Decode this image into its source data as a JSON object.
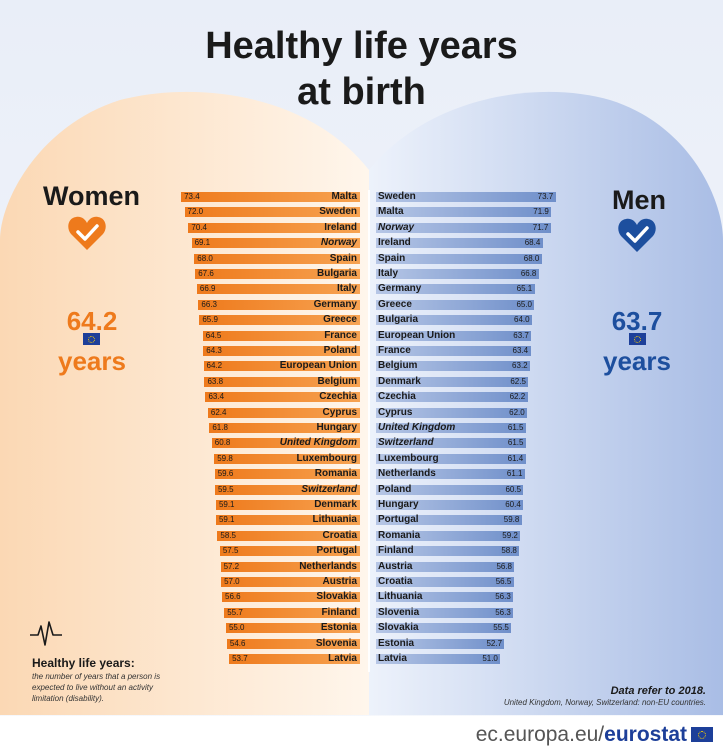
{
  "title_line1": "Healthy life years",
  "title_line2": "at birth",
  "women": {
    "label": "Women",
    "value": "64.2",
    "unit": "years",
    "color": "#ee7a1c"
  },
  "men": {
    "label": "Men",
    "value": "63.7",
    "unit": "years",
    "color": "#1d4f9e"
  },
  "note": {
    "title": "Healthy life years:",
    "text": "the number of years that a person is expected to live without an activity limitation (disability)."
  },
  "data_refer": "Data refer to 2018.",
  "footnote": "United Kingdom, Norway, Switzerland: non-EU countries.",
  "footer": {
    "url_prefix": "ec.europa.eu/",
    "url_brand": "eurostat"
  },
  "chart_data": [
    {
      "type": "bar",
      "series_name": "Women",
      "x_max": 80,
      "categories": [
        "Malta",
        "Sweden",
        "Ireland",
        "Norway",
        "Spain",
        "Bulgaria",
        "Italy",
        "Germany",
        "Greece",
        "France",
        "Poland",
        "European Union",
        "Belgium",
        "Czechia",
        "Cyprus",
        "Hungary",
        "United Kingdom",
        "Luxembourg",
        "Romania",
        "Switzerland",
        "Denmark",
        "Lithuania",
        "Croatia",
        "Portugal",
        "Netherlands",
        "Austria",
        "Slovakia",
        "Finland",
        "Estonia",
        "Slovenia",
        "Latvia"
      ],
      "values": [
        73.4,
        72.0,
        70.4,
        69.1,
        68.0,
        67.6,
        66.9,
        66.3,
        65.9,
        64.5,
        64.3,
        64.2,
        63.8,
        63.4,
        62.4,
        61.8,
        60.8,
        59.8,
        59.6,
        59.5,
        59.1,
        59.1,
        58.5,
        57.5,
        57.2,
        57.0,
        56.6,
        55.7,
        55.0,
        54.6,
        53.7
      ],
      "value_labels": [
        "73.4",
        "72.0",
        "70.4",
        "69.1",
        "68.0",
        "67.6",
        "66.9",
        "66.3",
        "65.9",
        "64.5",
        "64.3",
        "64.2",
        "63.8",
        "63.4",
        "62.4",
        "61.8",
        "60.8",
        "59.8",
        "59.6",
        "59.5",
        "59.1",
        "59.1",
        "58.5",
        "57.5",
        "57.2",
        "57.0",
        "56.6",
        "55.7",
        "55.0",
        "54.6",
        "53.7"
      ],
      "italic_categories": [
        "Norway",
        "United Kingdom",
        "Switzerland"
      ]
    },
    {
      "type": "bar",
      "series_name": "Men",
      "x_max": 80,
      "categories": [
        "Sweden",
        "Malta",
        "Norway",
        "Ireland",
        "Spain",
        "Italy",
        "Germany",
        "Greece",
        "Bulgaria",
        "European Union",
        "France",
        "Belgium",
        "Denmark",
        "Czechia",
        "Cyprus",
        "United Kingdom",
        "Switzerland",
        "Luxembourg",
        "Netherlands",
        "Poland",
        "Hungary",
        "Portugal",
        "Romania",
        "Finland",
        "Austria",
        "Croatia",
        "Lithuania",
        "Slovenia",
        "Slovakia",
        "Estonia",
        "Latvia"
      ],
      "values": [
        73.7,
        71.9,
        71.7,
        68.4,
        68.0,
        66.8,
        65.1,
        65.0,
        64.0,
        63.7,
        63.4,
        63.2,
        62.5,
        62.2,
        62.0,
        61.5,
        61.5,
        61.4,
        61.1,
        60.5,
        60.4,
        59.8,
        59.2,
        58.8,
        56.8,
        56.5,
        56.3,
        56.3,
        55.5,
        52.7,
        51.0
      ],
      "value_labels": [
        "73.7",
        "71.9",
        "71.7",
        "68.4",
        "68.0",
        "66.8",
        "65.1",
        "65.0",
        "64.0",
        "63.7",
        "63.4",
        "63.2",
        "62.5",
        "62.2",
        "62.0",
        "61.5",
        "61.5",
        "61.4",
        "61.1",
        "60.5",
        "60.4",
        "59.8",
        "59.2",
        "58.8",
        "56.8",
        "56.5",
        "56.3",
        "56.3",
        "55.5",
        "52.7",
        "51.0"
      ],
      "italic_categories": [
        "Norway",
        "United Kingdom",
        "Switzerland"
      ]
    }
  ]
}
